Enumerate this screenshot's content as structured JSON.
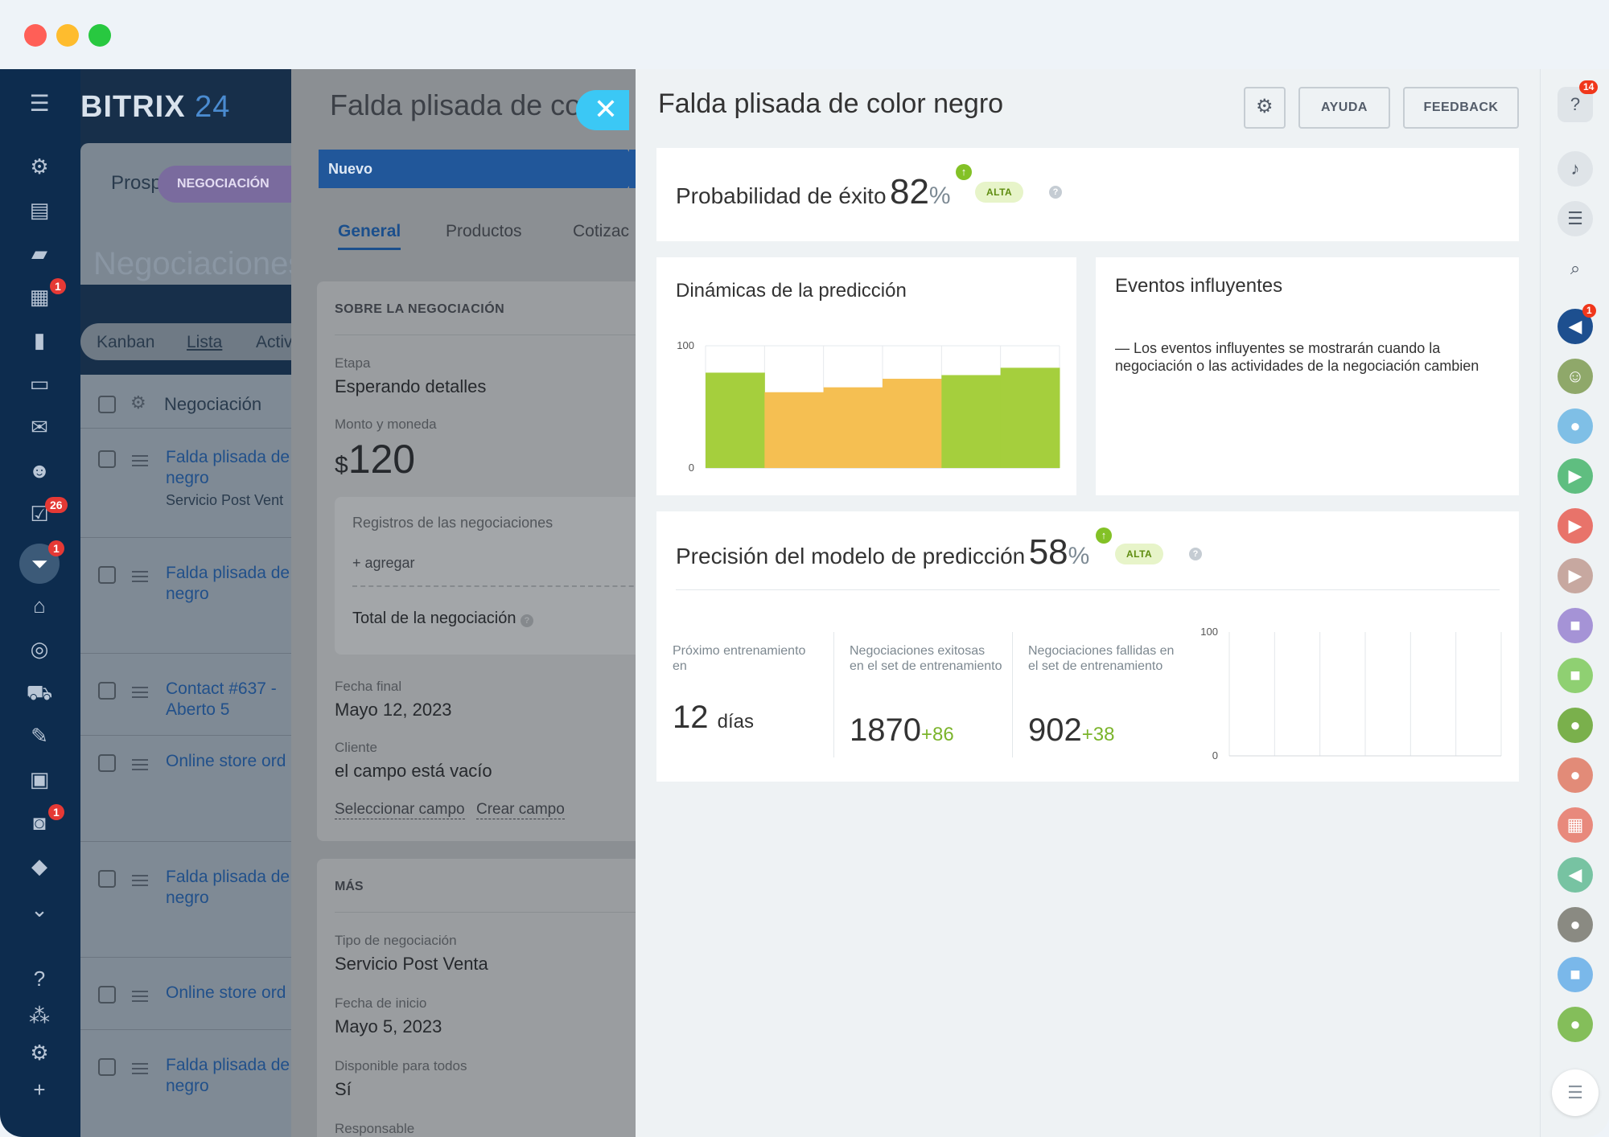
{
  "app": {
    "logo": "BITRIX",
    "logo_num": "24"
  },
  "leftnav": {
    "badges": {
      "calendar": "1",
      "tasks": "26",
      "crm": "1",
      "robots": "1"
    }
  },
  "background": {
    "tab_prospect": "Prosp",
    "pill": "NEGOCIACIÓN",
    "section_title": "Negociaciones",
    "views": [
      "Kanban",
      "Lista",
      "Activ"
    ],
    "column_header": "Negociación",
    "rows": [
      {
        "title": "Falda plisada de negro",
        "sub": "Servicio Post Vent"
      },
      {
        "title": "Falda plisada de negro",
        "sub": ""
      },
      {
        "title": "Contact #637 - Aberto 5",
        "sub": ""
      },
      {
        "title": "Online store ord",
        "sub": ""
      },
      {
        "title": "Falda plisada de negro",
        "sub": ""
      },
      {
        "title": "Online store ord",
        "sub": ""
      },
      {
        "title": "Falda plisada de negro",
        "sub": ""
      }
    ]
  },
  "deal": {
    "title": "Falda plisada de co",
    "stage_bar": "Nuevo",
    "tabs": [
      "General",
      "Productos",
      "Cotizac"
    ],
    "about_header": "SOBRE LA NEGOCIACIÓN",
    "stage_label": "Etapa",
    "stage_value": "Esperando detalles",
    "amount_label": "Monto y moneda",
    "amount_currency": "$",
    "amount_value": "120",
    "records_label": "Registros de las negociaciones",
    "add_link": "+ agregar",
    "total_label": "Total de la negociación",
    "end_date_label": "Fecha final",
    "end_date_value": "Mayo 12, 2023",
    "client_label": "Cliente",
    "client_value": "el campo está vacío",
    "select_field": "Seleccionar campo",
    "create_field": "Crear campo",
    "more_header": "MÁS",
    "type_label": "Tipo de negociación",
    "type_value": "Servicio Post Venta",
    "start_date_label": "Fecha de inicio",
    "start_date_value": "Mayo 5, 2023",
    "available_label": "Disponible para todos",
    "available_value": "Sí",
    "responsible_label": "Responsable"
  },
  "panel": {
    "title": "Falda plisada de color negro",
    "help_button": "AYUDA",
    "feedback_button": "FEEDBACK",
    "probability": {
      "label": "Probabilidad de éxito",
      "value": "82",
      "percent_sign": "%",
      "badge": "ALTA"
    },
    "dynamics": {
      "title": "Dinámicas de la predicción"
    },
    "events": {
      "title": "Eventos influyentes",
      "text": "—  Los eventos influyentes se mostrarán cuando la negociación o las actividades de la negociación cambien"
    },
    "precision": {
      "label": "Precisión del modelo de predicción",
      "value": "58",
      "percent_sign": "%",
      "badge": "ALTA",
      "next_training_label": "Próximo entrenamiento en",
      "next_training_value": "12",
      "next_training_unit": "días",
      "successful_label": "Negociaciones exitosas en el set de entrenamiento",
      "successful_value": "1870",
      "successful_delta": "+86",
      "failed_label": "Negociaciones fallidas en el set de entrenamiento",
      "failed_value": "902",
      "failed_delta": "+38"
    }
  },
  "rightbar": {
    "help_badge": "14",
    "notify_badge": "1"
  },
  "chart_data": [
    {
      "type": "bar",
      "title": "Dinámicas de la predicción",
      "ylim": [
        0,
        100
      ],
      "yticks": [
        "0",
        "100"
      ],
      "values": [
        78,
        62,
        66,
        73,
        76,
        82
      ],
      "colors": [
        "#a5cf3d",
        "#f5bf52",
        "#f5bf52",
        "#f5bf52",
        "#a5cf3d",
        "#a5cf3d"
      ],
      "grid": true
    },
    {
      "type": "bar",
      "title": "",
      "ylim": [
        0,
        100
      ],
      "yticks": [
        "0",
        "100"
      ],
      "values": [],
      "grid": true
    }
  ]
}
